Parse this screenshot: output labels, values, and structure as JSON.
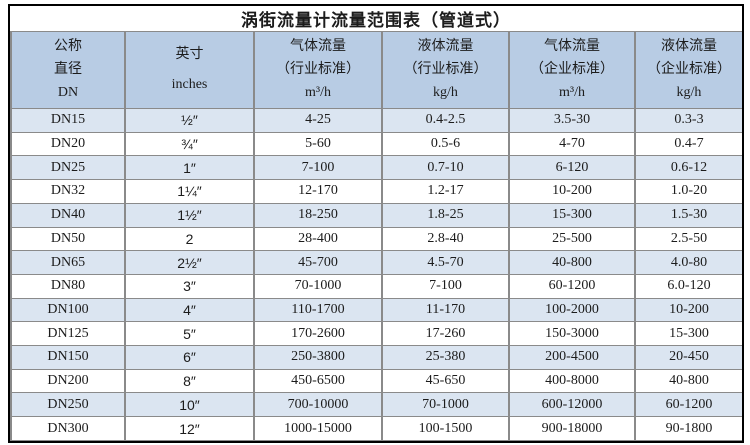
{
  "page": {
    "title": "涡街流量计流量范围表（管道式）"
  },
  "table": {
    "headers": [
      {
        "id": "dn",
        "lines": [
          "公称",
          "直径",
          "DN"
        ]
      },
      {
        "id": "inches",
        "lines": [
          "英寸",
          "inches"
        ]
      },
      {
        "id": "gas-industry",
        "lines": [
          "气体流量",
          "（行业标准）",
          "m³/h"
        ]
      },
      {
        "id": "liquid-industry",
        "lines": [
          "液体流量",
          "（行业标准）",
          "kg/h"
        ]
      },
      {
        "id": "gas-enterprise",
        "lines": [
          "气体流量",
          "（企业标准）",
          "m³/h"
        ]
      },
      {
        "id": "liquid-enterprise",
        "lines": [
          "液体流量",
          "（企业标准）",
          "kg/h"
        ]
      }
    ],
    "rows": [
      [
        "DN15",
        "½″",
        "4-25",
        "0.4-2.5",
        "3.5-30",
        "0.3-3"
      ],
      [
        "DN20",
        "¾″",
        "5-60",
        "0.5-6",
        "4-70",
        "0.4-7"
      ],
      [
        "DN25",
        "1″",
        "7-100",
        "0.7-10",
        "6-120",
        "0.6-12"
      ],
      [
        "DN32",
        "1¼″",
        "12-170",
        "1.2-17",
        "10-200",
        "1.0-20"
      ],
      [
        "DN40",
        "1½″",
        "18-250",
        "1.8-25",
        "15-300",
        "1.5-30"
      ],
      [
        "DN50",
        "2",
        "28-400",
        "2.8-40",
        "25-500",
        "2.5-50"
      ],
      [
        "DN65",
        "2½″",
        "45-700",
        "4.5-70",
        "40-800",
        "4.0-80"
      ],
      [
        "DN80",
        "3″",
        "70-1000",
        "7-100",
        "60-1200",
        "6.0-120"
      ],
      [
        "DN100",
        "4″",
        "110-1700",
        "11-170",
        "100-2000",
        "10-200"
      ],
      [
        "DN125",
        "5″",
        "170-2600",
        "17-260",
        "150-3000",
        "15-300"
      ],
      [
        "DN150",
        "6″",
        "250-3800",
        "25-380",
        "200-4500",
        "20-450"
      ],
      [
        "DN200",
        "8″",
        "450-6500",
        "45-650",
        "400-8000",
        "40-800"
      ],
      [
        "DN250",
        "10″",
        "700-10000",
        "70-1000",
        "600-12000",
        "60-1200"
      ],
      [
        "DN300",
        "12″",
        "1000-15000",
        "100-1500",
        "900-18000",
        "90-1800"
      ]
    ]
  },
  "colors": {
    "header_bg": "#b8cce4",
    "stripe_bg": "#dbe5f1",
    "row_bg": "#ffffff",
    "inner_border": "#8a8a8a",
    "outer_border": "#000000",
    "text": "#1c1c1c"
  }
}
